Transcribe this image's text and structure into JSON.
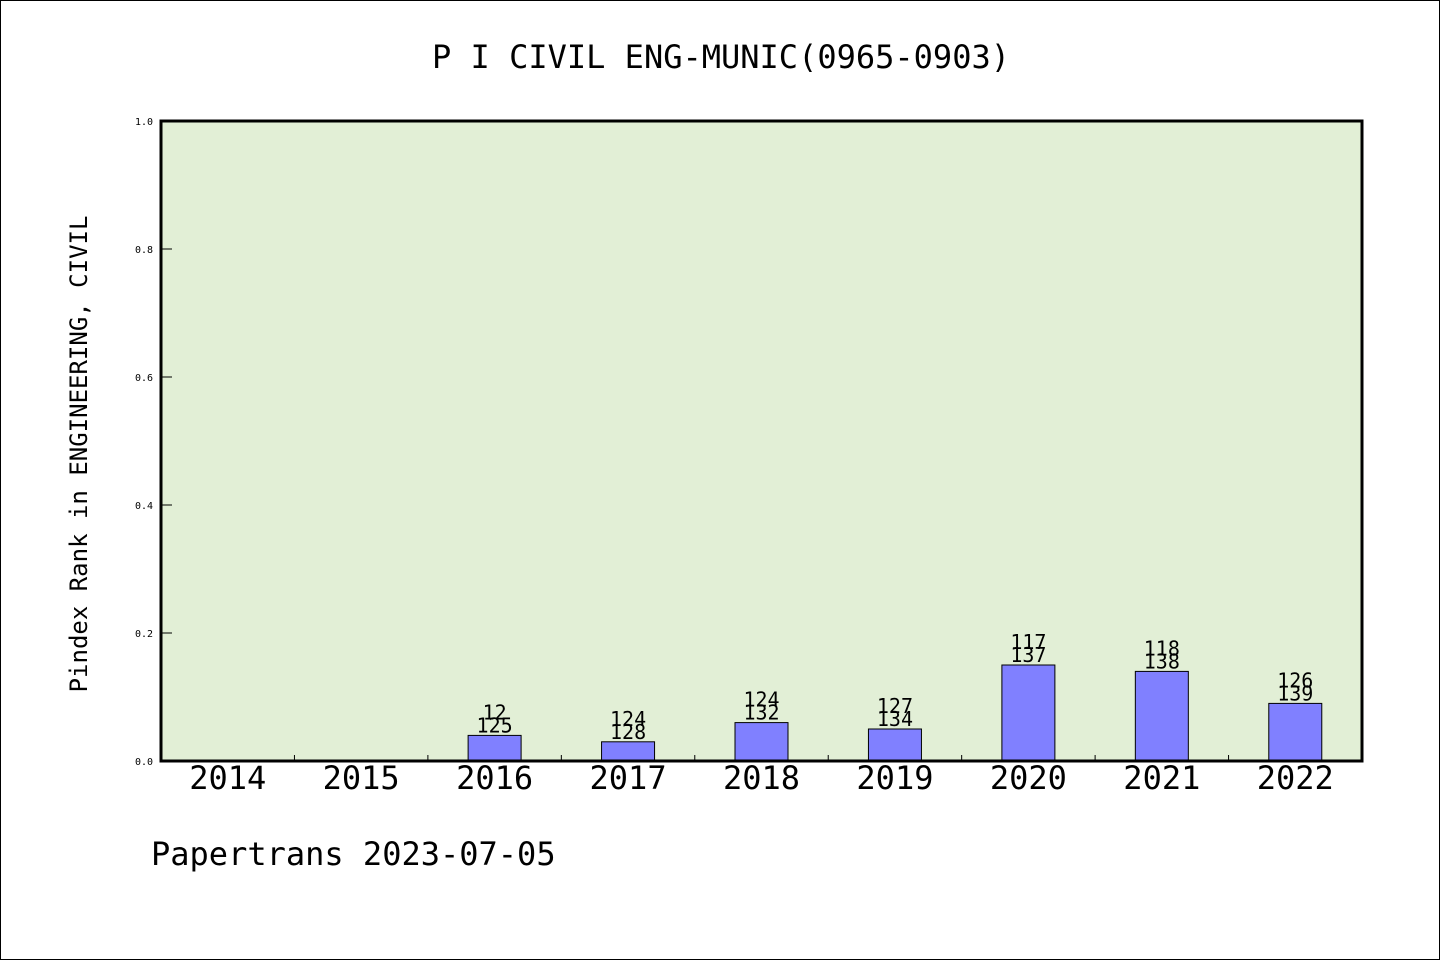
{
  "chart_data": {
    "type": "bar",
    "title": "P I CIVIL ENG-MUNIC(0965-0903)",
    "ylabel": "Pindex Rank in ENGINEERING, CIVIL",
    "xlabel": "",
    "ylim": [
      0,
      1.0
    ],
    "yticks": [
      "0.0",
      "0.2",
      "0.4",
      "0.6",
      "0.8",
      "1.0"
    ],
    "categories": [
      "2014",
      "2015",
      "2016",
      "2017",
      "2018",
      "2019",
      "2020",
      "2021",
      "2022"
    ],
    "values": [
      null,
      null,
      0.04,
      0.03,
      0.06,
      0.05,
      0.15,
      0.14,
      0.09
    ],
    "label_top": [
      "",
      "",
      "12",
      "124",
      "124",
      "127",
      "117",
      "118",
      "126"
    ],
    "label_bottom": [
      "",
      "",
      "125",
      "128",
      "132",
      "134",
      "137",
      "138",
      "139"
    ],
    "grid": false,
    "plot_background": "#e2efd6",
    "bar_color": "#8080ff"
  },
  "footer": "Papertrans 2023-07-05"
}
